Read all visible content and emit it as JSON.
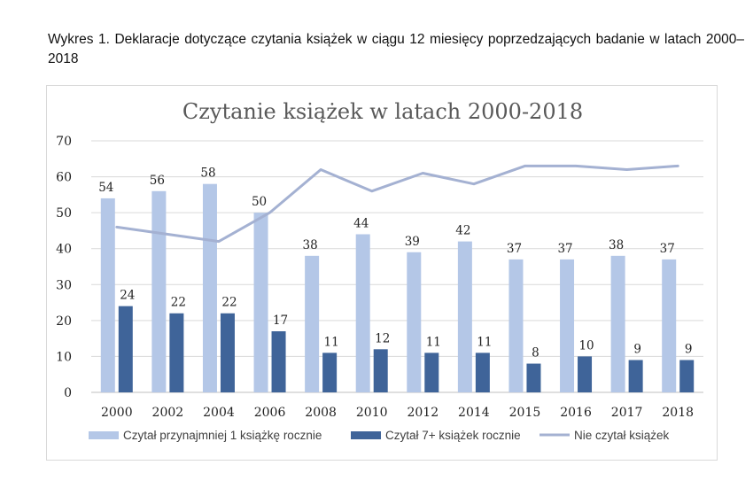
{
  "caption": "Wykres 1. Deklaracje dotyczące czytania książek w ciągu 12 miesięcy poprzedzających badanie w latach 2000–2018",
  "chart_data": {
    "type": "bar",
    "title": "Czytanie książek w latach 2000-2018",
    "xlabel": "",
    "ylabel": "",
    "ylim": [
      0,
      70
    ],
    "yticks": [
      0,
      10,
      20,
      30,
      40,
      50,
      60,
      70
    ],
    "grid": true,
    "legend_position": "bottom",
    "categories": [
      "2000",
      "2002",
      "2004",
      "2006",
      "2008",
      "2010",
      "2012",
      "2014",
      "2015",
      "2016",
      "2017",
      "2018"
    ],
    "series": [
      {
        "name": "Czytał przynajmniej 1 książkę rocznie",
        "type": "bar",
        "color": "#b4c7e7",
        "values": [
          54,
          56,
          58,
          50,
          38,
          44,
          39,
          42,
          37,
          37,
          38,
          37
        ],
        "labels": [
          "54",
          "56",
          "58",
          "50",
          "38",
          "44",
          "39",
          "42",
          "37",
          "37",
          "38",
          "37"
        ]
      },
      {
        "name": "Czytał 7+ książek rocznie",
        "type": "bar",
        "color": "#3f6499",
        "values": [
          24,
          22,
          22,
          17,
          11,
          12,
          11,
          11,
          8,
          10,
          9,
          9
        ],
        "labels": [
          "24",
          "22",
          "22",
          "17",
          "11",
          "12",
          "11",
          "11",
          "8",
          "10",
          "9",
          "9"
        ]
      },
      {
        "name": "Nie czytał książek",
        "type": "line",
        "color": "#a4b1d2",
        "values": [
          46,
          44,
          42,
          50,
          62,
          56,
          61,
          58,
          63,
          63,
          62,
          63
        ]
      }
    ]
  }
}
